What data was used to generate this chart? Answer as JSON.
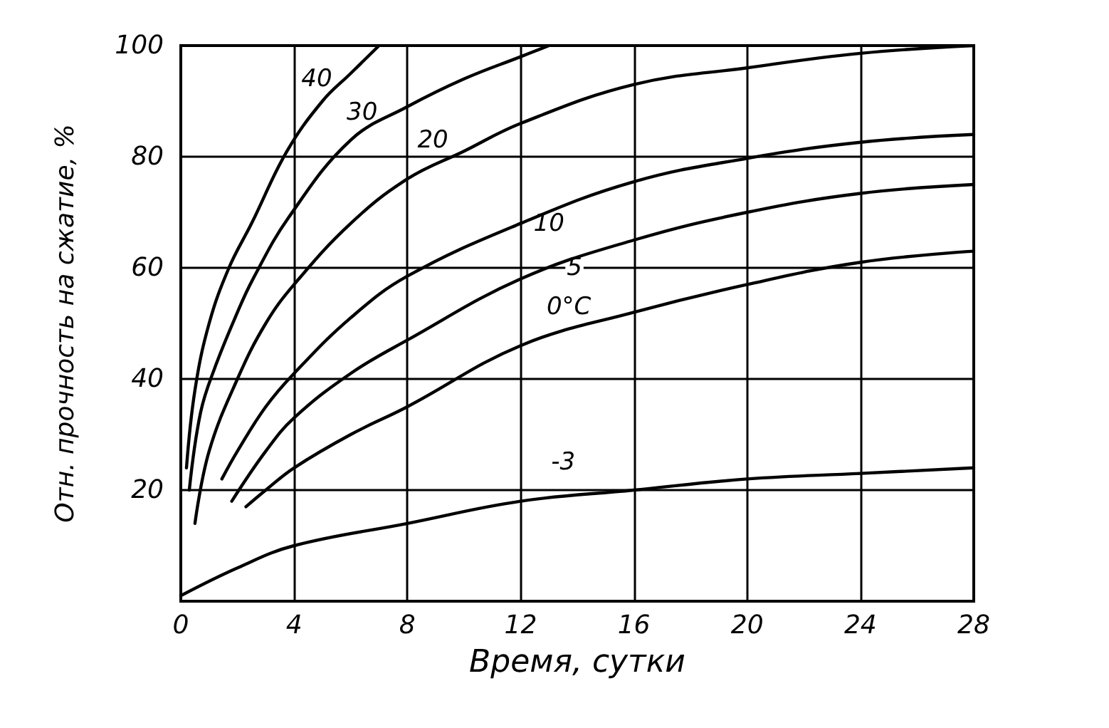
{
  "chart_data": {
    "type": "line",
    "xlabel": "Время, сутки",
    "ylabel": "Отн. прочность на сжатие, %",
    "xlim": [
      0,
      28
    ],
    "xticks": [
      0,
      4,
      8,
      12,
      16,
      20,
      24,
      28
    ],
    "ylim": [
      0,
      100
    ],
    "yticks": [
      20,
      40,
      60,
      80,
      100
    ],
    "grid": true,
    "marker": "none",
    "line_style": "solid",
    "series": [
      {
        "color": "#000000",
        "x": [
          0.2,
          0.5,
          1,
          1.7,
          2.5,
          3.75,
          5,
          6,
          7
        ],
        "values": [
          24,
          38,
          50,
          60,
          68,
          81,
          90,
          95,
          100
        ]
      },
      {
        "color": "#000000",
        "x": [
          0.3,
          0.7,
          1.2,
          2,
          2.55,
          3.8,
          6,
          8,
          10,
          12,
          13
        ],
        "values": [
          20,
          34,
          42,
          52,
          58,
          69,
          83,
          89,
          94,
          98,
          100
        ]
      },
      {
        "color": "#000000",
        "x": [
          0.5,
          1,
          2,
          3,
          4,
          6,
          8,
          10,
          12,
          16,
          20,
          24,
          28
        ],
        "values": [
          14,
          27,
          40,
          50,
          57,
          68,
          76,
          81,
          86,
          93,
          96,
          98.6,
          100
        ]
      },
      {
        "color": "#000000",
        "x": [
          1.45,
          2,
          3,
          4,
          6,
          8,
          12,
          16,
          20,
          24,
          28
        ],
        "values": [
          22,
          27,
          35,
          41,
          51,
          58.5,
          68,
          75.5,
          79.7,
          82.6,
          84
        ]
      },
      {
        "color": "#000000",
        "x": [
          1.8,
          3,
          4,
          6,
          8,
          12,
          16,
          20,
          24,
          28
        ],
        "values": [
          18,
          27,
          33,
          41,
          47,
          58,
          65,
          70,
          73.4,
          75
        ]
      },
      {
        "color": "#000000",
        "x": [
          2.3,
          3,
          4,
          6,
          8,
          12,
          16,
          20,
          24,
          28
        ],
        "values": [
          17,
          20,
          24,
          30,
          35,
          46,
          52,
          57,
          61,
          63
        ]
      },
      {
        "color": "#000000",
        "x": [
          0,
          2,
          4,
          8,
          12,
          16,
          20,
          24,
          28
        ],
        "values": [
          1,
          6,
          10,
          14,
          18,
          20,
          22,
          23,
          24
        ]
      }
    ],
    "annotations": [
      {
        "text": "40",
        "x": 4.8,
        "y": 94
      },
      {
        "text": "30",
        "x": 6.4,
        "y": 88
      },
      {
        "text": "20",
        "x": 8.9,
        "y": 83
      },
      {
        "text": "10",
        "x": 13,
        "y": 68
      },
      {
        "text": "5",
        "x": 13.9,
        "y": 60
      },
      {
        "text": "0°C",
        "x": 13.7,
        "y": 53
      },
      {
        "text": "-3",
        "x": 13.5,
        "y": 25
      }
    ]
  }
}
